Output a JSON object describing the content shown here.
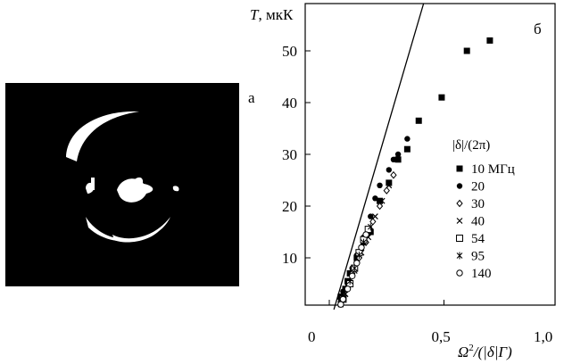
{
  "panel_a_label": "а",
  "chart_data": {
    "type": "scatter",
    "panel_label": "б",
    "ylabel_symbol": "T",
    "ylabel_unit": ", мкК",
    "xlabel_symbol": "Ω",
    "xlabel_sup": "2",
    "xlabel_rest": "/(|δ|Γ)",
    "xlim": [
      0,
      1.0
    ],
    "ylim": [
      0,
      60
    ],
    "x_ticks": [
      {
        "value": 0,
        "label": "0"
      },
      {
        "value": 0.5,
        "label": "0,5"
      },
      {
        "value": 1.0,
        "label": "1,0"
      }
    ],
    "y_ticks": [
      {
        "value": 10,
        "label": "10"
      },
      {
        "value": 20,
        "label": "20"
      },
      {
        "value": 30,
        "label": "30"
      },
      {
        "value": 40,
        "label": "40"
      },
      {
        "value": 50,
        "label": "50"
      }
    ],
    "legend_title": "|δ|/(2π)",
    "fit_line": {
      "x": [
        0.02,
        0.43
      ],
      "y": [
        0,
        62
      ]
    },
    "series": [
      {
        "name": "10 МГц",
        "marker": "filled-square",
        "points": [
          [
            0.05,
            2.5
          ],
          [
            0.07,
            4
          ],
          [
            0.08,
            5.5
          ],
          [
            0.09,
            7
          ],
          [
            0.12,
            10
          ],
          [
            0.15,
            13
          ],
          [
            0.18,
            15
          ],
          [
            0.22,
            21
          ],
          [
            0.26,
            24.5
          ],
          [
            0.3,
            29
          ],
          [
            0.34,
            31
          ],
          [
            0.39,
            36.5
          ],
          [
            0.49,
            41
          ],
          [
            0.6,
            50
          ],
          [
            0.7,
            52
          ]
        ]
      },
      {
        "name": "20",
        "marker": "filled-circle",
        "points": [
          [
            0.05,
            2
          ],
          [
            0.06,
            3.5
          ],
          [
            0.08,
            5
          ],
          [
            0.1,
            8
          ],
          [
            0.12,
            10.5
          ],
          [
            0.15,
            14
          ],
          [
            0.18,
            18
          ],
          [
            0.2,
            21.5
          ],
          [
            0.22,
            24
          ],
          [
            0.26,
            27
          ],
          [
            0.28,
            29
          ],
          [
            0.3,
            30
          ],
          [
            0.34,
            33
          ]
        ]
      },
      {
        "name": "30",
        "marker": "open-diamond",
        "points": [
          [
            0.05,
            1.5
          ],
          [
            0.08,
            4
          ],
          [
            0.1,
            7
          ],
          [
            0.13,
            10
          ],
          [
            0.16,
            13
          ],
          [
            0.19,
            17
          ],
          [
            0.22,
            20
          ],
          [
            0.25,
            23
          ],
          [
            0.28,
            26
          ]
        ]
      },
      {
        "name": "40",
        "marker": "cross",
        "points": [
          [
            0.05,
            1
          ],
          [
            0.07,
            3
          ],
          [
            0.09,
            5
          ],
          [
            0.11,
            7.5
          ],
          [
            0.14,
            11
          ],
          [
            0.17,
            14
          ],
          [
            0.2,
            18
          ],
          [
            0.23,
            21
          ],
          [
            0.26,
            24
          ]
        ]
      },
      {
        "name": "54",
        "marker": "open-square",
        "points": [
          [
            0.06,
            2
          ],
          [
            0.09,
            5
          ],
          [
            0.11,
            8
          ],
          [
            0.13,
            11
          ],
          [
            0.15,
            13.5
          ],
          [
            0.17,
            15.5
          ]
        ]
      },
      {
        "name": "95",
        "marker": "star",
        "points": [
          [
            0.05,
            1.5
          ],
          [
            0.07,
            3
          ],
          [
            0.09,
            5.5
          ],
          [
            0.11,
            8
          ],
          [
            0.13,
            10.5
          ],
          [
            0.15,
            13
          ],
          [
            0.18,
            16
          ]
        ]
      },
      {
        "name": "140",
        "marker": "open-circle",
        "points": [
          [
            0.05,
            1
          ],
          [
            0.06,
            2
          ],
          [
            0.08,
            4
          ],
          [
            0.1,
            6.5
          ],
          [
            0.12,
            9
          ],
          [
            0.14,
            12
          ],
          [
            0.16,
            14.5
          ]
        ]
      }
    ]
  }
}
